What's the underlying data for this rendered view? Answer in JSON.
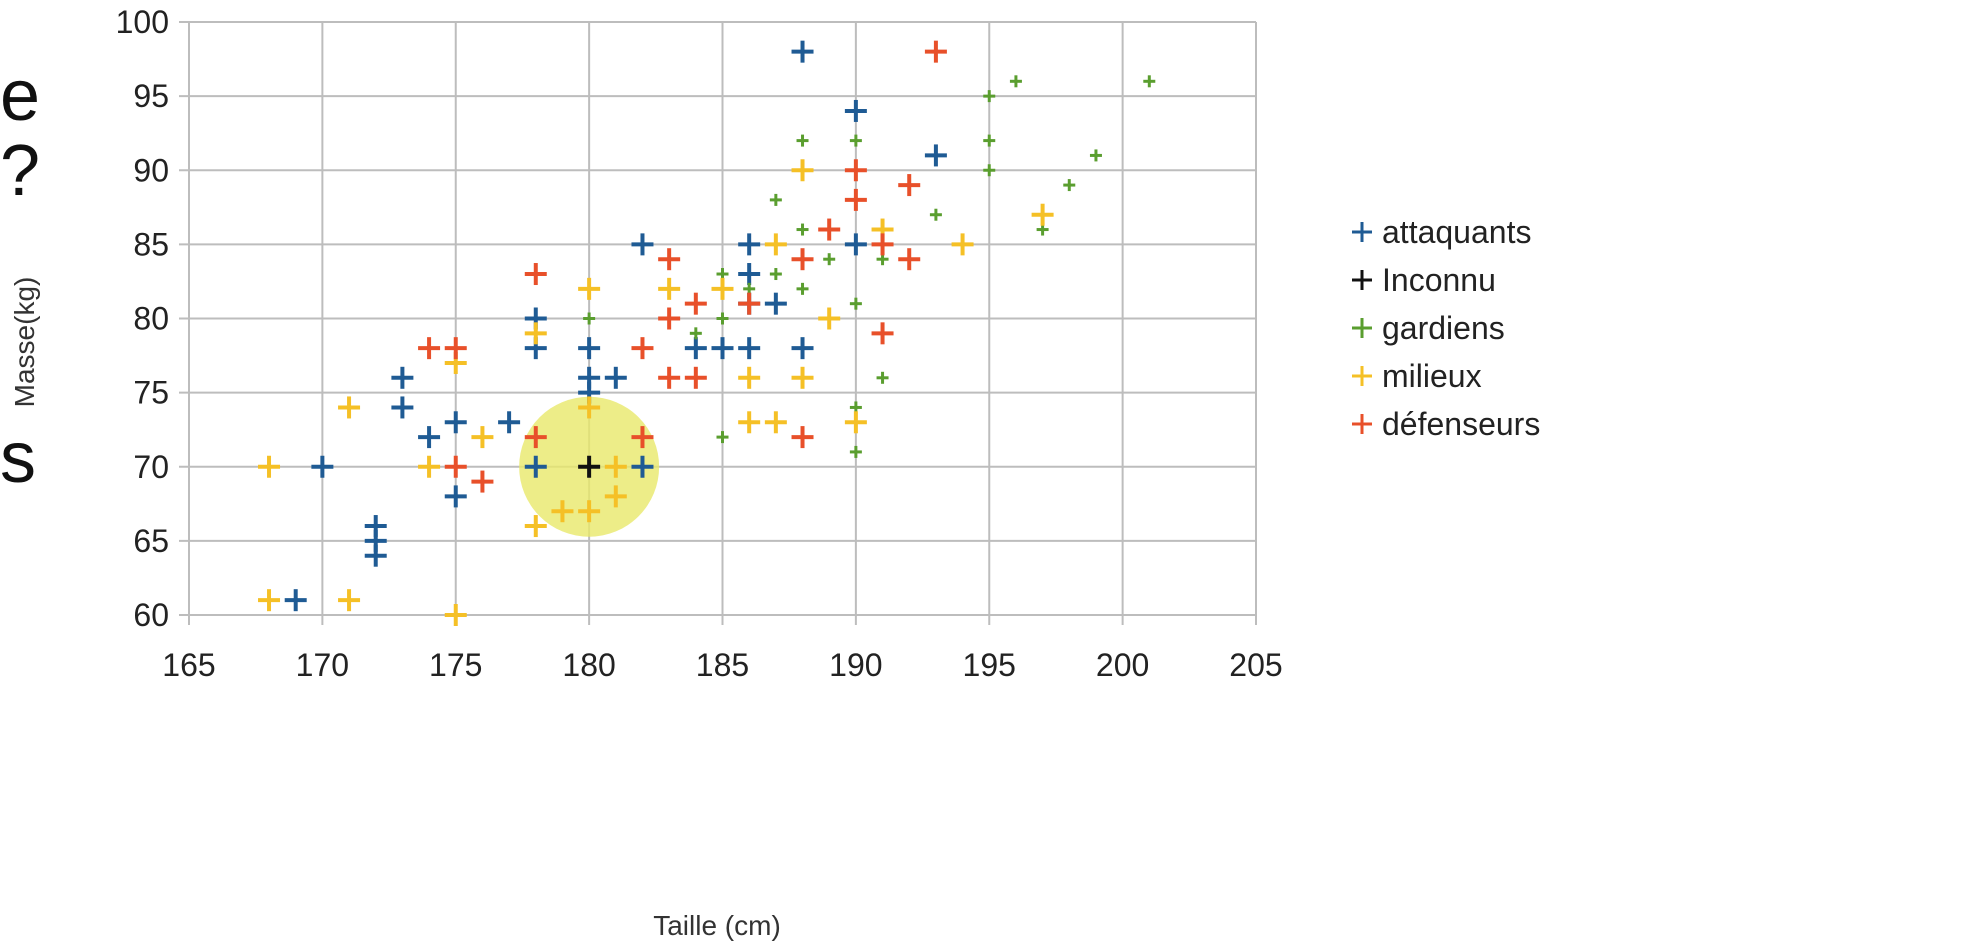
{
  "left_text_fragments": [
    "e",
    "?",
    "s"
  ],
  "chart_data": {
    "type": "scatter",
    "xlabel": "Taille (cm)",
    "ylabel": "Masse(kg)",
    "xlim": [
      165,
      205
    ],
    "ylim": [
      60,
      100
    ],
    "x_ticks": [
      165,
      170,
      175,
      180,
      185,
      190,
      195,
      200,
      205
    ],
    "y_ticks": [
      60,
      65,
      70,
      75,
      80,
      85,
      90,
      95,
      100
    ],
    "grid": true,
    "legend_position": "right",
    "highlight": {
      "x": 180,
      "y": 70,
      "color": "#e8e86a"
    },
    "series": [
      {
        "name": "attaquants",
        "color": "#1f5b94",
        "marker": "plus",
        "points": [
          [
            188,
            98
          ],
          [
            190,
            94
          ],
          [
            193,
            91
          ],
          [
            182,
            85
          ],
          [
            186,
            85
          ],
          [
            190,
            85
          ],
          [
            186,
            83
          ],
          [
            186,
            81
          ],
          [
            187,
            81
          ],
          [
            178,
            80
          ],
          [
            178,
            78
          ],
          [
            180,
            78
          ],
          [
            184,
            78
          ],
          [
            185,
            78
          ],
          [
            186,
            78
          ],
          [
            188,
            78
          ],
          [
            180,
            76
          ],
          [
            181,
            76
          ],
          [
            173,
            76
          ],
          [
            180,
            75
          ],
          [
            173,
            74
          ],
          [
            177,
            73
          ],
          [
            175,
            73
          ],
          [
            174,
            72
          ],
          [
            170,
            70
          ],
          [
            178,
            70
          ],
          [
            182,
            70
          ],
          [
            175,
            68
          ],
          [
            172,
            66
          ],
          [
            172,
            65
          ],
          [
            172,
            64
          ],
          [
            169,
            61
          ]
        ]
      },
      {
        "name": "Inconnu",
        "color": "#111111",
        "marker": "plus",
        "points": [
          [
            180,
            70
          ]
        ]
      },
      {
        "name": "gardiens",
        "color": "#5a9e2f",
        "marker": "plus",
        "points": [
          [
            196,
            96
          ],
          [
            201,
            96
          ],
          [
            195,
            95
          ],
          [
            188,
            92
          ],
          [
            190,
            92
          ],
          [
            195,
            92
          ],
          [
            199,
            91
          ],
          [
            195,
            90
          ],
          [
            198,
            89
          ],
          [
            187,
            88
          ],
          [
            193,
            87
          ],
          [
            197,
            86
          ],
          [
            188,
            86
          ],
          [
            191,
            84
          ],
          [
            189,
            84
          ],
          [
            187,
            83
          ],
          [
            185,
            83
          ],
          [
            186,
            82
          ],
          [
            188,
            82
          ],
          [
            190,
            81
          ],
          [
            180,
            80
          ],
          [
            185,
            80
          ],
          [
            183,
            80
          ],
          [
            184,
            79
          ],
          [
            191,
            76
          ],
          [
            190,
            74
          ],
          [
            185,
            72
          ],
          [
            190,
            71
          ]
        ]
      },
      {
        "name": "milieux",
        "color": "#f5c026",
        "marker": "plus",
        "points": [
          [
            188,
            90
          ],
          [
            197,
            87
          ],
          [
            191,
            86
          ],
          [
            187,
            85
          ],
          [
            194,
            85
          ],
          [
            183,
            82
          ],
          [
            185,
            82
          ],
          [
            180,
            82
          ],
          [
            189,
            80
          ],
          [
            178,
            79
          ],
          [
            175,
            77
          ],
          [
            186,
            76
          ],
          [
            188,
            76
          ],
          [
            171,
            74
          ],
          [
            180,
            74
          ],
          [
            186,
            73
          ],
          [
            187,
            73
          ],
          [
            190,
            73
          ],
          [
            176,
            72
          ],
          [
            174,
            70
          ],
          [
            181,
            70
          ],
          [
            168,
            70
          ],
          [
            181,
            68
          ],
          [
            178,
            66
          ],
          [
            179,
            67
          ],
          [
            180,
            67
          ],
          [
            168,
            61
          ],
          [
            171,
            61
          ],
          [
            175,
            60
          ]
        ]
      },
      {
        "name": "défenseurs",
        "color": "#e8502a",
        "marker": "plus",
        "points": [
          [
            193,
            98
          ],
          [
            190,
            90
          ],
          [
            192,
            89
          ],
          [
            190,
            88
          ],
          [
            189,
            86
          ],
          [
            191,
            85
          ],
          [
            183,
            84
          ],
          [
            188,
            84
          ],
          [
            192,
            84
          ],
          [
            178,
            83
          ],
          [
            184,
            81
          ],
          [
            186,
            81
          ],
          [
            183,
            80
          ],
          [
            191,
            79
          ],
          [
            182,
            78
          ],
          [
            174,
            78
          ],
          [
            175,
            78
          ],
          [
            183,
            76
          ],
          [
            184,
            76
          ],
          [
            178,
            72
          ],
          [
            182,
            72
          ],
          [
            188,
            72
          ],
          [
            175,
            70
          ],
          [
            176,
            69
          ]
        ]
      }
    ]
  }
}
